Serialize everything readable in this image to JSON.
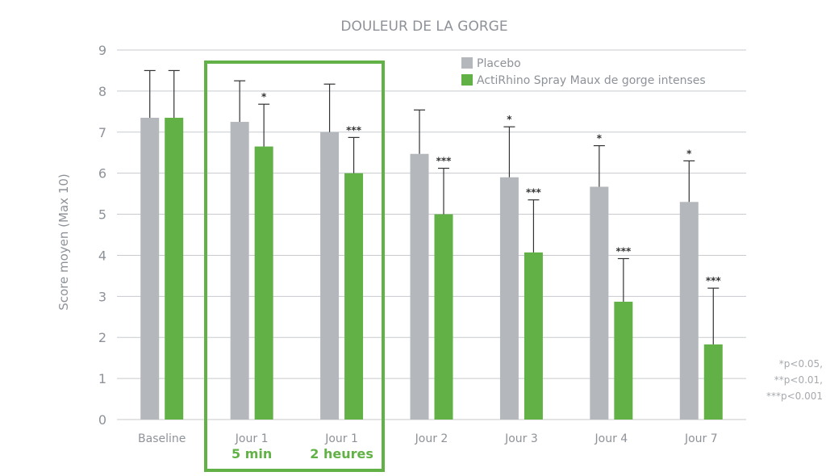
{
  "chart_data": {
    "type": "bar",
    "title": "DOULEUR DE LA GORGE",
    "ylabel": "Score moyen (Max 10)",
    "ylim": [
      0,
      9
    ],
    "yticks": [
      "0",
      "1",
      "2",
      "3",
      "4",
      "5",
      "6",
      "7",
      "8",
      "9"
    ],
    "grid": true,
    "legend_position": "top-right",
    "categories": [
      "Baseline",
      "Jour 1",
      "Jour 1",
      "Jour 2",
      "Jour 3",
      "Jour 4",
      "Jour 7"
    ],
    "sub_labels": [
      "",
      "5 min",
      "2 heures",
      "",
      "",
      "",
      ""
    ],
    "highlight": {
      "categories": [
        1,
        2
      ],
      "color": "#62b146"
    },
    "series": [
      {
        "name": "Placebo",
        "color": "#b4b7bb",
        "values": [
          7.35,
          7.25,
          7.0,
          6.47,
          5.9,
          5.67,
          5.3
        ],
        "errors": [
          1.15,
          1.0,
          1.17,
          1.07,
          1.23,
          1.0,
          1.0
        ],
        "sig": [
          "",
          "",
          "",
          "",
          "*",
          "*",
          "*"
        ]
      },
      {
        "name": "ActiRhino Spray Maux de gorge intenses",
        "color": "#62b146",
        "values": [
          7.35,
          6.65,
          6.0,
          5.0,
          4.07,
          2.87,
          1.83
        ],
        "errors": [
          1.15,
          1.03,
          0.87,
          1.12,
          1.28,
          1.05,
          1.37
        ],
        "sig": [
          "",
          "*",
          "***",
          "***",
          "***",
          "***",
          "***"
        ]
      }
    ],
    "footnote": [
      "*p<0.05,",
      "**p<0.01,",
      "***p<0.001"
    ]
  }
}
